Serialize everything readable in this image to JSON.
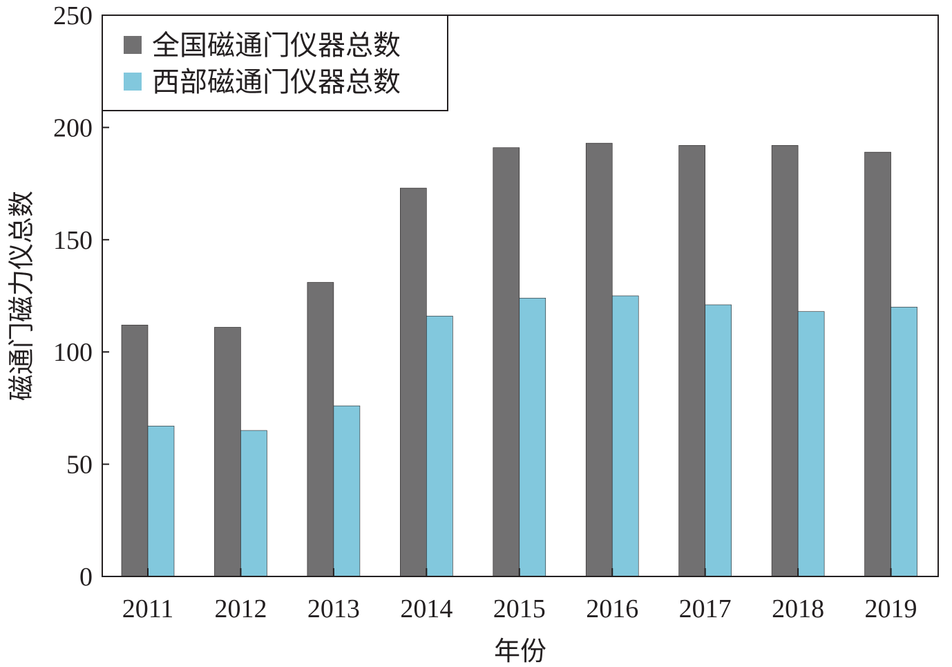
{
  "chart_data": {
    "type": "bar",
    "categories": [
      "2011",
      "2012",
      "2013",
      "2014",
      "2015",
      "2016",
      "2017",
      "2018",
      "2019"
    ],
    "series": [
      {
        "name": "全国磁通门仪器总数",
        "color": "#717071",
        "values": [
          112,
          111,
          131,
          173,
          191,
          193,
          192,
          192,
          189
        ]
      },
      {
        "name": "西部磁通门仪器总数",
        "color": "#82c8dd",
        "values": [
          67,
          65,
          76,
          116,
          124,
          125,
          121,
          118,
          120
        ]
      }
    ],
    "title": "",
    "xlabel": "年份",
    "ylabel": "磁通门磁力仪总数",
    "ylim": [
      0,
      250
    ],
    "yticks": [
      0,
      50,
      100,
      150,
      200,
      250
    ],
    "legend_position": "top-left",
    "grid": false
  }
}
